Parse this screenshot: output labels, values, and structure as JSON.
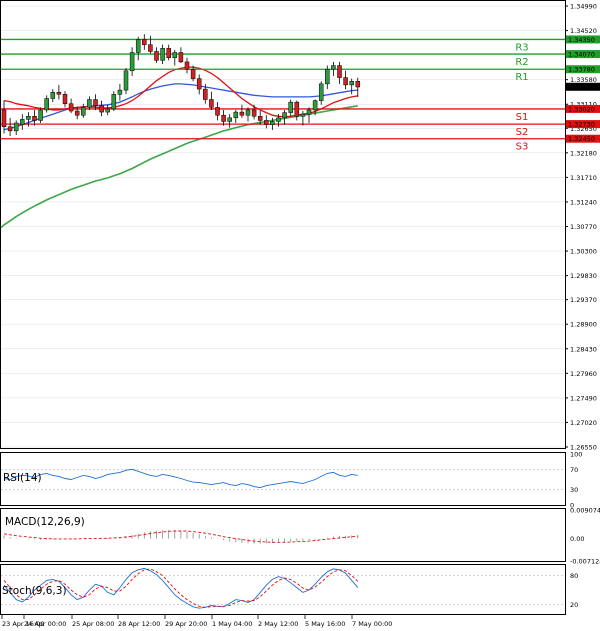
{
  "chart_data": {
    "type": "candlestick",
    "colors": {
      "bull": "#2e9a3e",
      "bear": "#d42020",
      "ma_fast": "#e01010",
      "ma_mid": "#2f58d8",
      "ma_slow": "#3aa848",
      "resistance": "#1e9e2a",
      "support": "#e01010",
      "rsi_line": "#1e6ed8",
      "macd_hist": "#888888",
      "macd_signal": "#e01010",
      "stoch_k": "#1e6ed8",
      "stoch_d": "#e01010",
      "grid": "#dedede"
    },
    "price_axis": {
      "ymin": 1.2655,
      "ymax": 1.3499,
      "ticks": [
        "1.34990",
        "1.34520",
        "1.33580",
        "1.33110",
        "1.32650",
        "1.32180",
        "1.31710",
        "1.31240",
        "1.30770",
        "1.30300",
        "1.29830",
        "1.29370",
        "1.28900",
        "1.28430",
        "1.27960",
        "1.27490",
        "1.27020",
        "1.26550"
      ]
    },
    "current_price": {
      "value": 1.33444,
      "label": "1.33444"
    },
    "levels": [
      {
        "name": "R3",
        "value": 1.3435,
        "label": "1.34350",
        "kind": "resistance"
      },
      {
        "name": "R2",
        "value": 1.3407,
        "label": "1.34070",
        "kind": "resistance"
      },
      {
        "name": "R1",
        "value": 1.3378,
        "label": "1.33780",
        "kind": "resistance"
      },
      {
        "name": "S1",
        "value": 1.3302,
        "label": "1.33020",
        "kind": "support"
      },
      {
        "name": "S2",
        "value": 1.3273,
        "label": "1.32730",
        "kind": "support"
      },
      {
        "name": "S3",
        "value": 1.3245,
        "label": "1.32450",
        "kind": "support"
      }
    ],
    "candles": [
      {
        "o": 1.33,
        "h": 1.3318,
        "l": 1.3255,
        "c": 1.3268
      },
      {
        "o": 1.3268,
        "h": 1.3285,
        "l": 1.325,
        "c": 1.326
      },
      {
        "o": 1.326,
        "h": 1.328,
        "l": 1.3252,
        "c": 1.3275
      },
      {
        "o": 1.3272,
        "h": 1.3292,
        "l": 1.3262,
        "c": 1.3282
      },
      {
        "o": 1.3282,
        "h": 1.3296,
        "l": 1.3268,
        "c": 1.3288
      },
      {
        "o": 1.3288,
        "h": 1.33,
        "l": 1.327,
        "c": 1.328
      },
      {
        "o": 1.328,
        "h": 1.3305,
        "l": 1.3275,
        "c": 1.33
      },
      {
        "o": 1.33,
        "h": 1.3328,
        "l": 1.3295,
        "c": 1.3322
      },
      {
        "o": 1.3322,
        "h": 1.334,
        "l": 1.3315,
        "c": 1.3334
      },
      {
        "o": 1.3334,
        "h": 1.3348,
        "l": 1.332,
        "c": 1.333
      },
      {
        "o": 1.333,
        "h": 1.3336,
        "l": 1.3305,
        "c": 1.3312
      },
      {
        "o": 1.3312,
        "h": 1.3322,
        "l": 1.3294,
        "c": 1.3298
      },
      {
        "o": 1.3298,
        "h": 1.3306,
        "l": 1.3282,
        "c": 1.329
      },
      {
        "o": 1.329,
        "h": 1.3312,
        "l": 1.3285,
        "c": 1.3305
      },
      {
        "o": 1.3305,
        "h": 1.3326,
        "l": 1.33,
        "c": 1.332
      },
      {
        "o": 1.332,
        "h": 1.333,
        "l": 1.33,
        "c": 1.3308
      },
      {
        "o": 1.3308,
        "h": 1.3318,
        "l": 1.3288,
        "c": 1.3296
      },
      {
        "o": 1.3296,
        "h": 1.331,
        "l": 1.329,
        "c": 1.3302
      },
      {
        "o": 1.3302,
        "h": 1.3336,
        "l": 1.3298,
        "c": 1.333
      },
      {
        "o": 1.333,
        "h": 1.335,
        "l": 1.3318,
        "c": 1.3338
      },
      {
        "o": 1.3338,
        "h": 1.338,
        "l": 1.333,
        "c": 1.3375
      },
      {
        "o": 1.3375,
        "h": 1.342,
        "l": 1.3365,
        "c": 1.341
      },
      {
        "o": 1.341,
        "h": 1.344,
        "l": 1.3395,
        "c": 1.3435
      },
      {
        "o": 1.3435,
        "h": 1.3445,
        "l": 1.3415,
        "c": 1.3425
      },
      {
        "o": 1.3425,
        "h": 1.3442,
        "l": 1.3408,
        "c": 1.3412
      },
      {
        "o": 1.3412,
        "h": 1.342,
        "l": 1.339,
        "c": 1.3395
      },
      {
        "o": 1.3395,
        "h": 1.3425,
        "l": 1.3388,
        "c": 1.3418
      },
      {
        "o": 1.3418,
        "h": 1.3425,
        "l": 1.3395,
        "c": 1.34
      },
      {
        "o": 1.34,
        "h": 1.3415,
        "l": 1.3385,
        "c": 1.341
      },
      {
        "o": 1.341,
        "h": 1.342,
        "l": 1.339,
        "c": 1.3392
      },
      {
        "o": 1.3392,
        "h": 1.34,
        "l": 1.337,
        "c": 1.3378
      },
      {
        "o": 1.3378,
        "h": 1.3385,
        "l": 1.3355,
        "c": 1.336
      },
      {
        "o": 1.336,
        "h": 1.3368,
        "l": 1.333,
        "c": 1.334
      },
      {
        "o": 1.334,
        "h": 1.335,
        "l": 1.3312,
        "c": 1.332
      },
      {
        "o": 1.332,
        "h": 1.3335,
        "l": 1.33,
        "c": 1.3305
      },
      {
        "o": 1.3305,
        "h": 1.3315,
        "l": 1.328,
        "c": 1.329
      },
      {
        "o": 1.329,
        "h": 1.33,
        "l": 1.327,
        "c": 1.3278
      },
      {
        "o": 1.3278,
        "h": 1.3292,
        "l": 1.3266,
        "c": 1.3285
      },
      {
        "o": 1.3285,
        "h": 1.33,
        "l": 1.3275,
        "c": 1.3296
      },
      {
        "o": 1.3296,
        "h": 1.331,
        "l": 1.3285,
        "c": 1.329
      },
      {
        "o": 1.329,
        "h": 1.3305,
        "l": 1.3278,
        "c": 1.33
      },
      {
        "o": 1.33,
        "h": 1.331,
        "l": 1.3282,
        "c": 1.3288
      },
      {
        "o": 1.3288,
        "h": 1.3298,
        "l": 1.3272,
        "c": 1.328
      },
      {
        "o": 1.328,
        "h": 1.329,
        "l": 1.3265,
        "c": 1.3272
      },
      {
        "o": 1.3272,
        "h": 1.3285,
        "l": 1.3262,
        "c": 1.3278
      },
      {
        "o": 1.3278,
        "h": 1.3292,
        "l": 1.3268,
        "c": 1.3285
      },
      {
        "o": 1.3285,
        "h": 1.33,
        "l": 1.3272,
        "c": 1.3295
      },
      {
        "o": 1.3295,
        "h": 1.332,
        "l": 1.3288,
        "c": 1.3315
      },
      {
        "o": 1.3315,
        "h": 1.3318,
        "l": 1.328,
        "c": 1.3288
      },
      {
        "o": 1.3288,
        "h": 1.3298,
        "l": 1.327,
        "c": 1.3292
      },
      {
        "o": 1.3292,
        "h": 1.3305,
        "l": 1.3275,
        "c": 1.33
      },
      {
        "o": 1.33,
        "h": 1.332,
        "l": 1.329,
        "c": 1.3318
      },
      {
        "o": 1.3318,
        "h": 1.3355,
        "l": 1.331,
        "c": 1.335
      },
      {
        "o": 1.335,
        "h": 1.3385,
        "l": 1.334,
        "c": 1.3378
      },
      {
        "o": 1.3378,
        "h": 1.3392,
        "l": 1.3365,
        "c": 1.3385
      },
      {
        "o": 1.3385,
        "h": 1.3392,
        "l": 1.335,
        "c": 1.3362
      },
      {
        "o": 1.3362,
        "h": 1.3375,
        "l": 1.334,
        "c": 1.3348
      },
      {
        "o": 1.3348,
        "h": 1.336,
        "l": 1.333,
        "c": 1.3355
      },
      {
        "o": 1.3355,
        "h": 1.3362,
        "l": 1.3325,
        "c": 1.3344
      }
    ],
    "ma_fast": [
      1.3318,
      1.3316,
      1.3312,
      1.331,
      1.3308,
      1.3305,
      1.3303,
      1.3302,
      1.33,
      1.33,
      1.3302,
      1.3304,
      1.3305,
      1.3306,
      1.3306,
      1.3305,
      1.3304,
      1.3304,
      1.3305,
      1.3308,
      1.3312,
      1.3318,
      1.3326,
      1.3336,
      1.3346,
      1.3356,
      1.3364,
      1.3372,
      1.3377,
      1.338,
      1.3382,
      1.3382,
      1.338,
      1.3376,
      1.337,
      1.3362,
      1.3352,
      1.3342,
      1.3332,
      1.3322,
      1.3314,
      1.3306,
      1.33,
      1.3295,
      1.329,
      1.3288,
      1.3287,
      1.3288,
      1.329,
      1.3292,
      1.3294,
      1.3297,
      1.3302,
      1.3308,
      1.3314,
      1.3318,
      1.3322,
      1.3325,
      1.3327
    ],
    "ma_mid": [
      1.3262,
      1.3265,
      1.3268,
      1.3272,
      1.3276,
      1.328,
      1.3284,
      1.3288,
      1.3292,
      1.3296,
      1.33,
      1.3303,
      1.3305,
      1.3306,
      1.3307,
      1.3308,
      1.3309,
      1.331,
      1.3312,
      1.3315,
      1.332,
      1.3325,
      1.3331,
      1.3336,
      1.334,
      1.3343,
      1.3346,
      1.3348,
      1.335,
      1.335,
      1.3349,
      1.3348,
      1.3346,
      1.3344,
      1.3342,
      1.334,
      1.3338,
      1.3336,
      1.3334,
      1.3332,
      1.333,
      1.3328,
      1.3327,
      1.3326,
      1.3325,
      1.3325,
      1.3325,
      1.3325,
      1.3325,
      1.3325,
      1.3325,
      1.3326,
      1.3327,
      1.3329,
      1.3331,
      1.3333,
      1.3335,
      1.3337,
      1.3338
    ],
    "ma_slow": [
      1.308,
      1.3088,
      1.3096,
      1.3103,
      1.311,
      1.3116,
      1.3122,
      1.3128,
      1.3133,
      1.3138,
      1.3143,
      1.3148,
      1.3152,
      1.3156,
      1.316,
      1.3164,
      1.3167,
      1.317,
      1.3174,
      1.3178,
      1.3183,
      1.3188,
      1.3194,
      1.32,
      1.3206,
      1.3211,
      1.3216,
      1.3221,
      1.3226,
      1.3231,
      1.3236,
      1.324,
      1.3244,
      1.3248,
      1.3252,
      1.3256,
      1.326,
      1.3263,
      1.3266,
      1.3269,
      1.3272,
      1.3274,
      1.3276,
      1.3278,
      1.328,
      1.3282,
      1.3284,
      1.3286,
      1.3288,
      1.329,
      1.3292,
      1.3294,
      1.3296,
      1.3298,
      1.33,
      1.3302,
      1.3304,
      1.3306,
      1.3308
    ],
    "x_labels": [
      "23 Apr 16:00",
      "24 Apr 00:00",
      "25 Apr 08:00",
      "28 Apr 12:00",
      "29 Apr 20:00",
      "1 May 04:00",
      "2 May 12:00",
      "5 May 16:00",
      "7 May 00:00"
    ],
    "rsi": {
      "title": "RSI(14)",
      "ticks": [
        "100",
        "70",
        "30",
        "0"
      ],
      "levels": [
        70,
        30
      ],
      "values": [
        52,
        50,
        56,
        58,
        57,
        54,
        60,
        62,
        58,
        56,
        52,
        50,
        54,
        58,
        56,
        52,
        55,
        60,
        62,
        64,
        68,
        70,
        66,
        62,
        58,
        56,
        60,
        58,
        55,
        52,
        48,
        45,
        44,
        42,
        40,
        42,
        44,
        40,
        38,
        42,
        40,
        36,
        34,
        38,
        40,
        42,
        44,
        46,
        44,
        42,
        46,
        50,
        56,
        62,
        64,
        58,
        56,
        60,
        58
      ]
    },
    "macd": {
      "title": "MACD(12,26,9)",
      "ticks": [
        "0.009074",
        "0.00",
        "-0.007124"
      ],
      "histogram": [
        0.001,
        0.0005,
        0.0002,
        0.0,
        -0.0002,
        -0.0003,
        -0.0004,
        -0.0004,
        -0.0003,
        -0.0002,
        -0.0001,
        -0.0001,
        0.0,
        0.0,
        0.0001,
        0.0001,
        0.0001,
        0.0002,
        0.0003,
        0.0005,
        0.0008,
        0.0012,
        0.0016,
        0.002,
        0.0023,
        0.0025,
        0.0026,
        0.0027,
        0.0026,
        0.0025,
        0.0022,
        0.0018,
        0.0014,
        0.0009,
        0.0004,
        -0.0001,
        -0.0005,
        -0.0009,
        -0.0012,
        -0.0014,
        -0.0015,
        -0.0016,
        -0.0016,
        -0.0015,
        -0.0014,
        -0.0012,
        -0.0011,
        -0.0009,
        -0.0008,
        -0.0007,
        -0.0005,
        -0.0003,
        0.0,
        0.0003,
        0.0006,
        0.0008,
        0.0009,
        0.001,
        0.0011
      ],
      "signal": [
        0.0015,
        0.0012,
        0.0009,
        0.0007,
        0.0005,
        0.0003,
        0.0001,
        0.0,
        -0.0001,
        -0.0001,
        -0.0001,
        -0.0001,
        -0.0001,
        0.0,
        0.0,
        0.0,
        0.0001,
        0.0001,
        0.0002,
        0.0003,
        0.0005,
        0.0007,
        0.001,
        0.0013,
        0.0016,
        0.0019,
        0.0021,
        0.0023,
        0.0024,
        0.0024,
        0.0024,
        0.0022,
        0.002,
        0.0017,
        0.0014,
        0.001,
        0.0006,
        0.0003,
        0.0,
        -0.0003,
        -0.0006,
        -0.0008,
        -0.001,
        -0.0011,
        -0.0012,
        -0.0012,
        -0.0012,
        -0.0011,
        -0.001,
        -0.0009,
        -0.0008,
        -0.0006,
        -0.0004,
        -0.0002,
        0.0,
        0.0002,
        0.0004,
        0.0006,
        0.0008
      ]
    },
    "stoch": {
      "title": "Stoch(9,6,3)",
      "ticks": [
        "80",
        "20"
      ],
      "levels": [
        80,
        20
      ],
      "k": [
        60,
        45,
        30,
        25,
        35,
        50,
        60,
        70,
        72,
        68,
        55,
        40,
        30,
        35,
        50,
        62,
        58,
        45,
        40,
        55,
        72,
        86,
        92,
        95,
        90,
        82,
        70,
        55,
        40,
        30,
        22,
        15,
        12,
        14,
        18,
        16,
        15,
        22,
        30,
        28,
        24,
        30,
        45,
        60,
        72,
        78,
        74,
        65,
        55,
        45,
        50,
        62,
        76,
        88,
        94,
        92,
        85,
        70,
        55
      ],
      "d": [
        70,
        55,
        40,
        30,
        30,
        40,
        52,
        62,
        68,
        70,
        62,
        50,
        40,
        35,
        40,
        52,
        58,
        55,
        48,
        48,
        58,
        72,
        84,
        92,
        94,
        88,
        80,
        66,
        52,
        40,
        30,
        22,
        16,
        14,
        15,
        16,
        16,
        18,
        24,
        28,
        27,
        28,
        36,
        48,
        60,
        70,
        75,
        72,
        64,
        54,
        50,
        56,
        66,
        78,
        88,
        92,
        90,
        80,
        68
      ]
    }
  }
}
